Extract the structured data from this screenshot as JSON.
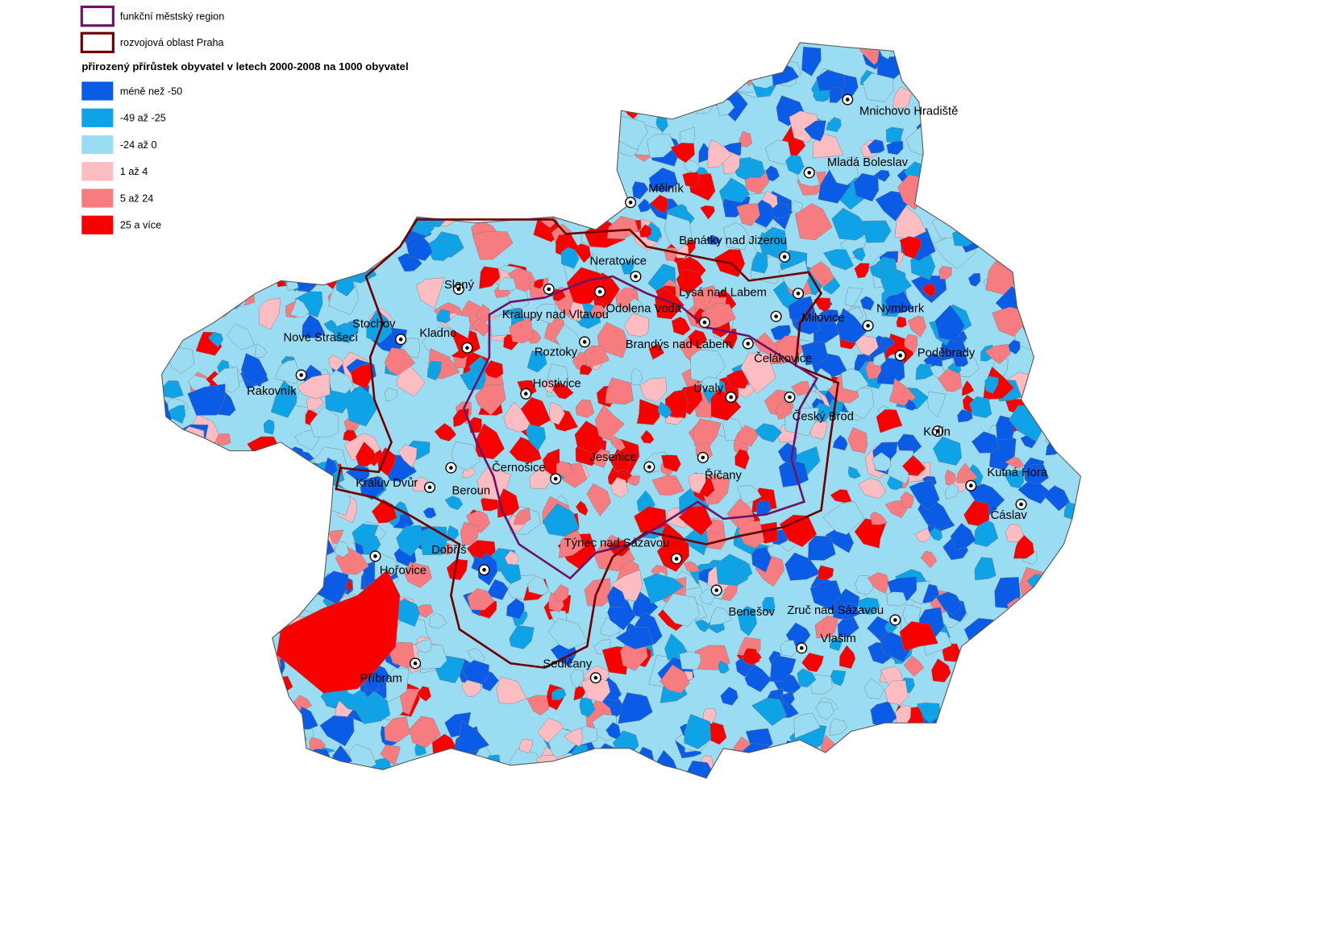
{
  "legend": {
    "boundaries": [
      {
        "label": "funkční městský region",
        "color": "#6e1466"
      },
      {
        "label": "rozvojová oblast Praha",
        "color": "#700000"
      }
    ],
    "title": "přirozený přírůstek obyvatel v letech 2000-2008 na 1000 obyvatel",
    "classes": [
      {
        "label": "méně než -50",
        "color": "#0a5ce6"
      },
      {
        "label": "-49 až -25",
        "color": "#0ea2e6"
      },
      {
        "label": "-24 až 0",
        "color": "#9adcf2"
      },
      {
        "label": "1 až 4",
        "color": "#fbbcc2"
      },
      {
        "label": "5 až 24",
        "color": "#f67c80"
      },
      {
        "label": "25 a více",
        "color": "#f80000"
      }
    ]
  },
  "cities": [
    "Mnichovo Hradiště",
    "Mladá Boleslav",
    "Mělník",
    "Benátky nad Jizerou",
    "Neratovice",
    "Slaný",
    "Lysá nad Labem",
    "Odolena Voda",
    "Milovice",
    "Nymburk",
    "Kralupy nad Vltavou",
    "Stochov",
    "Nové Strašecí",
    "Kladno",
    "Roztoky",
    "Brandýs nad Labem",
    "Čelákovice",
    "Poděbrady",
    "Rakovník",
    "Hostivice",
    "Úvaly",
    "Český Brod",
    "Kolín",
    "Jesenice",
    "Beroun",
    "Černošice",
    "Říčany",
    "Kutná Hora",
    "Králův Dvůr",
    "Čáslav",
    "Dobříš",
    "Hořovice",
    "Týnec nad Sázavou",
    "Benešov",
    "Zruč nad Sázavou",
    "Vlašim",
    "Příbram",
    "Sedlčany"
  ]
}
